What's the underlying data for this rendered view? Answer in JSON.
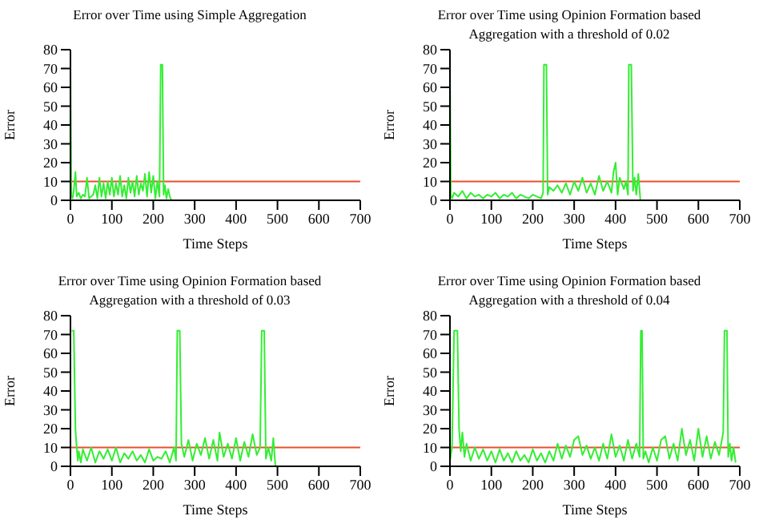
{
  "chart_data": [
    {
      "type": "line",
      "title": "Error over Time using Simple Aggregation",
      "xlabel": "Time Steps",
      "ylabel": "Error",
      "xlim": [
        0,
        700
      ],
      "xticks": [
        0,
        100,
        200,
        300,
        400,
        500,
        600,
        700
      ],
      "ylim": [
        0,
        80
      ],
      "yticks": [
        0,
        10,
        20,
        30,
        40,
        50,
        60,
        70,
        80
      ],
      "grid": false,
      "series": [
        {
          "color": "#33ee33",
          "x": [
            0,
            2,
            5,
            8,
            12,
            15,
            20,
            25,
            30,
            35,
            40,
            45,
            50,
            55,
            60,
            65,
            70,
            75,
            80,
            85,
            90,
            95,
            100,
            105,
            110,
            115,
            120,
            125,
            130,
            135,
            140,
            145,
            150,
            155,
            160,
            165,
            170,
            175,
            180,
            185,
            190,
            195,
            200,
            205,
            210,
            215,
            218,
            220,
            222,
            225,
            228,
            232,
            236,
            240,
            244
          ],
          "values": [
            70,
            3,
            1,
            5,
            15,
            2,
            4,
            1,
            3,
            2,
            12,
            1,
            2,
            3,
            8,
            1,
            12,
            2,
            9,
            1,
            10,
            3,
            12,
            2,
            9,
            3,
            13,
            2,
            8,
            1,
            12,
            4,
            10,
            2,
            13,
            3,
            9,
            5,
            14,
            2,
            15,
            4,
            13,
            1,
            10,
            2,
            72,
            72,
            72,
            3,
            8,
            1,
            6,
            2,
            0
          ]
        }
      ],
      "ref_lines": [
        {
          "axis": "y",
          "value": 10,
          "color": "#e8502e"
        }
      ]
    },
    {
      "type": "line",
      "title": "Error over Time using Opinion Formation based Aggregation with a threshold of 0.02",
      "xlabel": "Time Steps",
      "ylabel": "Error",
      "xlim": [
        0,
        700
      ],
      "xticks": [
        0,
        100,
        200,
        300,
        400,
        500,
        600,
        700
      ],
      "ylim": [
        0,
        80
      ],
      "yticks": [
        0,
        10,
        20,
        30,
        40,
        50,
        60,
        70,
        80
      ],
      "grid": false,
      "series": [
        {
          "color": "#33ee33",
          "x": [
            0,
            2,
            5,
            10,
            20,
            30,
            40,
            50,
            60,
            70,
            80,
            90,
            100,
            110,
            120,
            130,
            140,
            150,
            160,
            170,
            180,
            190,
            200,
            210,
            220,
            225,
            227,
            230,
            233,
            236,
            240,
            250,
            260,
            270,
            280,
            290,
            300,
            310,
            320,
            330,
            340,
            350,
            360,
            370,
            380,
            390,
            395,
            400,
            405,
            410,
            420,
            425,
            430,
            432,
            435,
            438,
            442,
            446,
            450,
            455,
            460
          ],
          "values": [
            70,
            3,
            1,
            4,
            2,
            5,
            1,
            4,
            2,
            3,
            1,
            3,
            2,
            4,
            1,
            3,
            2,
            4,
            1,
            3,
            2,
            1,
            3,
            2,
            1,
            4,
            72,
            72,
            72,
            3,
            7,
            5,
            8,
            4,
            9,
            3,
            10,
            5,
            12,
            4,
            9,
            3,
            13,
            5,
            10,
            4,
            15,
            20,
            3,
            12,
            6,
            10,
            3,
            72,
            72,
            72,
            5,
            12,
            3,
            14,
            0
          ]
        }
      ],
      "ref_lines": [
        {
          "axis": "y",
          "value": 10,
          "color": "#e8502e"
        }
      ]
    },
    {
      "type": "line",
      "title": "Error over Time using Opinion Formation based Aggregation with a threshold of 0.03",
      "xlabel": "Time Steps",
      "ylabel": "Error",
      "xlim": [
        0,
        700
      ],
      "xticks": [
        0,
        100,
        200,
        300,
        400,
        500,
        600,
        700
      ],
      "ylim": [
        0,
        80
      ],
      "yticks": [
        0,
        10,
        20,
        30,
        40,
        50,
        60,
        70,
        80
      ],
      "grid": false,
      "series": [
        {
          "color": "#33ee33",
          "x": [
            3,
            8,
            12,
            15,
            18,
            20,
            25,
            30,
            40,
            50,
            60,
            70,
            80,
            90,
            100,
            110,
            120,
            130,
            140,
            150,
            160,
            170,
            180,
            190,
            200,
            210,
            220,
            230,
            240,
            250,
            255,
            258,
            261,
            264,
            268,
            275,
            285,
            295,
            305,
            315,
            325,
            335,
            345,
            355,
            360,
            370,
            380,
            390,
            400,
            410,
            420,
            430,
            440,
            450,
            458,
            462,
            465,
            468,
            472,
            478,
            485,
            490,
            495
          ],
          "values": [
            72,
            72,
            20,
            10,
            3,
            8,
            2,
            9,
            3,
            10,
            2,
            8,
            4,
            9,
            3,
            10,
            2,
            7,
            4,
            8,
            3,
            6,
            2,
            9,
            3,
            5,
            4,
            8,
            2,
            10,
            3,
            72,
            72,
            72,
            12,
            5,
            14,
            3,
            12,
            6,
            15,
            4,
            14,
            3,
            18,
            5,
            12,
            4,
            15,
            3,
            13,
            5,
            17,
            6,
            10,
            72,
            72,
            72,
            4,
            10,
            3,
            15,
            0
          ]
        }
      ],
      "ref_lines": [
        {
          "axis": "y",
          "value": 10,
          "color": "#e8502e"
        }
      ]
    },
    {
      "type": "line",
      "title": "Error over Time using Opinion Formation based Aggregation with a threshold of 0.04",
      "xlabel": "Time Steps",
      "ylabel": "Error",
      "xlim": [
        0,
        700
      ],
      "xticks": [
        0,
        100,
        200,
        300,
        400,
        500,
        600,
        700
      ],
      "ylim": [
        0,
        80
      ],
      "yticks": [
        0,
        10,
        20,
        30,
        40,
        50,
        60,
        70,
        80
      ],
      "grid": false,
      "series": [
        {
          "color": "#33ee33",
          "x": [
            0,
            5,
            10,
            15,
            18,
            22,
            26,
            30,
            35,
            40,
            50,
            60,
            70,
            80,
            90,
            100,
            110,
            120,
            130,
            140,
            150,
            160,
            170,
            180,
            190,
            200,
            210,
            220,
            230,
            240,
            250,
            260,
            270,
            280,
            290,
            300,
            310,
            320,
            330,
            340,
            350,
            360,
            370,
            380,
            390,
            400,
            410,
            420,
            430,
            440,
            450,
            458,
            461,
            464,
            467,
            472,
            480,
            490,
            500,
            510,
            520,
            530,
            540,
            550,
            560,
            570,
            580,
            590,
            600,
            610,
            620,
            630,
            640,
            650,
            660,
            663,
            666,
            669,
            672,
            676,
            680,
            685,
            690
          ],
          "values": [
            3,
            10,
            72,
            72,
            72,
            20,
            8,
            18,
            5,
            12,
            3,
            10,
            4,
            9,
            3,
            8,
            2,
            9,
            3,
            7,
            2,
            8,
            3,
            6,
            2,
            9,
            3,
            7,
            2,
            8,
            3,
            12,
            4,
            11,
            5,
            14,
            16,
            6,
            11,
            4,
            10,
            3,
            12,
            4,
            17,
            5,
            11,
            3,
            14,
            4,
            12,
            5,
            72,
            72,
            4,
            8,
            2,
            10,
            3,
            14,
            16,
            4,
            12,
            3,
            20,
            6,
            14,
            3,
            20,
            5,
            16,
            4,
            13,
            6,
            18,
            72,
            72,
            72,
            5,
            12,
            3,
            10,
            2
          ]
        }
      ],
      "ref_lines": [
        {
          "axis": "y",
          "value": 10,
          "color": "#e8502e"
        }
      ]
    }
  ]
}
